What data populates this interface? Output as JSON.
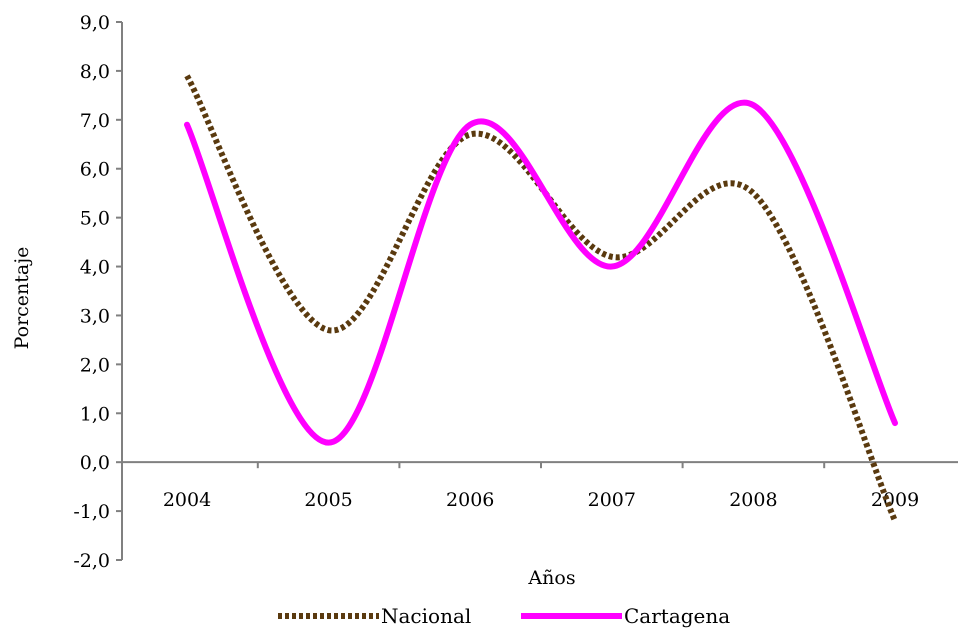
{
  "chart_data": {
    "type": "line",
    "categories": [
      "2004",
      "2005",
      "2006",
      "2007",
      "2008",
      "2009"
    ],
    "series": [
      {
        "name": "Nacional",
        "values": [
          7.9,
          2.7,
          6.7,
          4.2,
          5.5,
          -1.2
        ],
        "color": "#5a3a0f",
        "style": "dotted"
      },
      {
        "name": "Cartagena",
        "values": [
          6.9,
          0.4,
          6.9,
          4.0,
          7.3,
          0.8
        ],
        "color": "#ff00ff",
        "style": "solid"
      }
    ],
    "ylim": [
      -2,
      9
    ],
    "yticks": [
      "9,0",
      "8,0",
      "7,0",
      "6,0",
      "5,0",
      "4,0",
      "3,0",
      "2,0",
      "1,0",
      "0,0",
      "-1,0",
      "-2,0"
    ],
    "xlabel": "Años",
    "ylabel": "Porcentaje",
    "smooth": true,
    "grid": false,
    "legend_position": "bottom"
  }
}
